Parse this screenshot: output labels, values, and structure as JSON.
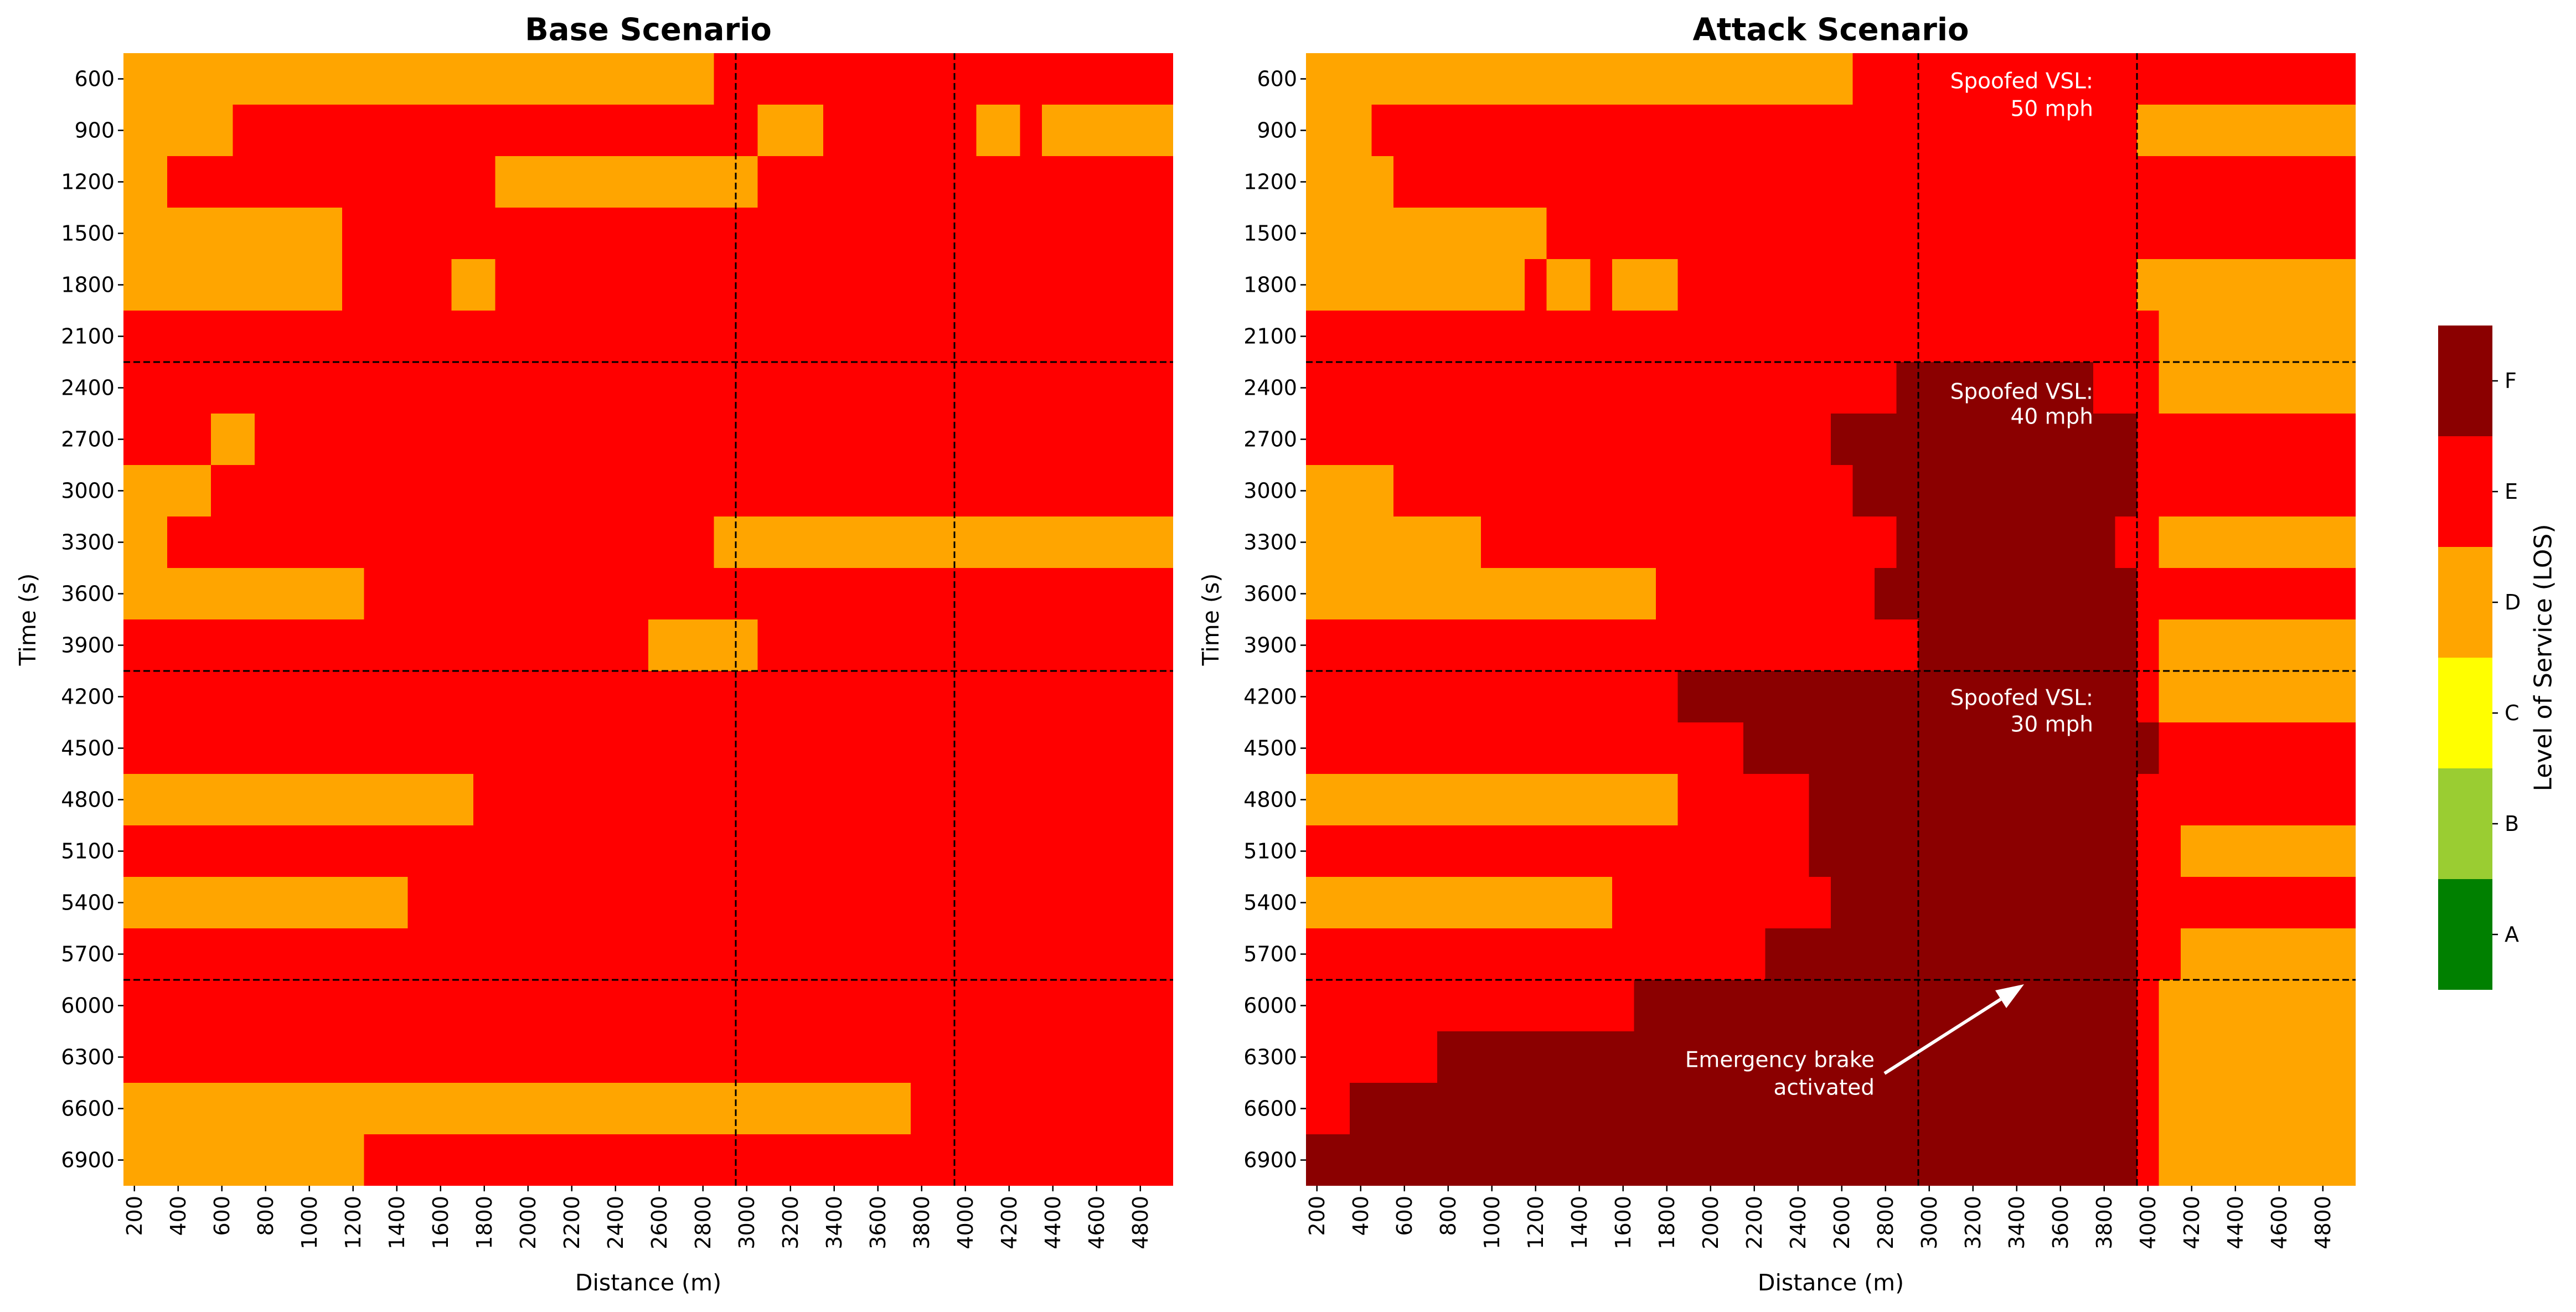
{
  "chart_data": {
    "type": "heatmap",
    "xlabel": "Distance (m)",
    "ylabel": "Time (s)",
    "colorbar_label": "Level of Service (LOS)",
    "levels": [
      "A",
      "B",
      "C",
      "D",
      "E",
      "F"
    ],
    "level_colors": [
      "#008000",
      "#9acd32",
      "#ffff00",
      "#ffa500",
      "#ff0000",
      "#8b0000"
    ],
    "distance_bins_m": [
      200,
      300,
      400,
      500,
      600,
      700,
      800,
      900,
      1000,
      1100,
      1200,
      1300,
      1400,
      1500,
      1600,
      1700,
      1800,
      1900,
      2000,
      2100,
      2200,
      2300,
      2400,
      2500,
      2600,
      2700,
      2800,
      2900,
      3000,
      3100,
      3200,
      3300,
      3400,
      3500,
      3600,
      3700,
      3800,
      3900,
      4000,
      4100,
      4200,
      4300,
      4400,
      4500,
      4600,
      4700,
      4800,
      4900
    ],
    "xtick_labels": [
      "200",
      "400",
      "600",
      "800",
      "1000",
      "1200",
      "1400",
      "1600",
      "1800",
      "2000",
      "2200",
      "2400",
      "2600",
      "2800",
      "3000",
      "3200",
      "3400",
      "3600",
      "3800",
      "4000",
      "4200",
      "4400",
      "4600",
      "4800"
    ],
    "ytick_labels": [
      "600",
      "900",
      "1200",
      "1500",
      "1800",
      "2100",
      "2400",
      "2700",
      "3000",
      "3300",
      "3600",
      "3900",
      "4200",
      "4500",
      "4800",
      "5100",
      "5400",
      "5700",
      "6000",
      "6300",
      "6600",
      "6900"
    ],
    "distance_markers_m": [
      3000,
      4000
    ],
    "time_markers_s": [
      2400,
      4200,
      6000
    ],
    "cell_encoding": "each row lists [from_distance_m, to_distance_m, level_index] runs; level_index indexes levels",
    "panels": [
      {
        "title": "Base Scenario",
        "rows": [
          {
            "time_s": 600,
            "cells": [
              [
                200,
                2800,
                3
              ],
              [
                2900,
                4900,
                4
              ]
            ]
          },
          {
            "time_s": 900,
            "cells": [
              [
                200,
                600,
                3
              ],
              [
                700,
                3000,
                4
              ],
              [
                3100,
                3300,
                3
              ],
              [
                3400,
                4000,
                4
              ],
              [
                4100,
                4200,
                3
              ],
              [
                4300,
                4300,
                4
              ],
              [
                4400,
                4900,
                3
              ]
            ]
          },
          {
            "time_s": 1200,
            "cells": [
              [
                200,
                300,
                3
              ],
              [
                400,
                1800,
                4
              ],
              [
                1900,
                3000,
                3
              ],
              [
                3100,
                4900,
                4
              ]
            ]
          },
          {
            "time_s": 1500,
            "cells": [
              [
                200,
                1100,
                3
              ],
              [
                1200,
                4900,
                4
              ]
            ]
          },
          {
            "time_s": 1800,
            "cells": [
              [
                200,
                1100,
                3
              ],
              [
                1200,
                1600,
                4
              ],
              [
                1700,
                1800,
                3
              ],
              [
                1900,
                4900,
                4
              ]
            ]
          },
          {
            "time_s": 2100,
            "cells": [
              [
                200,
                4900,
                4
              ]
            ]
          },
          {
            "time_s": 2400,
            "cells": [
              [
                200,
                4900,
                4
              ]
            ]
          },
          {
            "time_s": 2700,
            "cells": [
              [
                200,
                500,
                4
              ],
              [
                600,
                700,
                3
              ],
              [
                800,
                4900,
                4
              ]
            ]
          },
          {
            "time_s": 3000,
            "cells": [
              [
                200,
                500,
                3
              ],
              [
                600,
                4900,
                4
              ]
            ]
          },
          {
            "time_s": 3300,
            "cells": [
              [
                200,
                300,
                3
              ],
              [
                400,
                2800,
                4
              ],
              [
                2900,
                4900,
                3
              ]
            ]
          },
          {
            "time_s": 3600,
            "cells": [
              [
                200,
                1200,
                3
              ],
              [
                1300,
                4900,
                4
              ]
            ]
          },
          {
            "time_s": 3900,
            "cells": [
              [
                200,
                2500,
                4
              ],
              [
                2600,
                3000,
                3
              ],
              [
                3100,
                4900,
                4
              ]
            ]
          },
          {
            "time_s": 4200,
            "cells": [
              [
                200,
                4900,
                4
              ]
            ]
          },
          {
            "time_s": 4500,
            "cells": [
              [
                200,
                4900,
                4
              ]
            ]
          },
          {
            "time_s": 4800,
            "cells": [
              [
                200,
                1700,
                3
              ],
              [
                1800,
                4900,
                4
              ]
            ]
          },
          {
            "time_s": 5100,
            "cells": [
              [
                200,
                4900,
                4
              ]
            ]
          },
          {
            "time_s": 5400,
            "cells": [
              [
                200,
                1400,
                3
              ],
              [
                1500,
                4900,
                4
              ]
            ]
          },
          {
            "time_s": 5700,
            "cells": [
              [
                200,
                4900,
                4
              ]
            ]
          },
          {
            "time_s": 6000,
            "cells": [
              [
                200,
                4900,
                4
              ]
            ]
          },
          {
            "time_s": 6300,
            "cells": [
              [
                200,
                4900,
                4
              ]
            ]
          },
          {
            "time_s": 6600,
            "cells": [
              [
                200,
                3700,
                3
              ],
              [
                3800,
                4900,
                4
              ]
            ]
          },
          {
            "time_s": 6900,
            "cells": [
              [
                200,
                1200,
                3
              ],
              [
                1300,
                4900,
                4
              ]
            ]
          }
        ]
      },
      {
        "title": "Attack Scenario",
        "rows": [
          {
            "time_s": 600,
            "cells": [
              [
                200,
                2600,
                3
              ],
              [
                2700,
                4900,
                4
              ]
            ]
          },
          {
            "time_s": 900,
            "cells": [
              [
                200,
                400,
                3
              ],
              [
                500,
                3900,
                4
              ],
              [
                4000,
                4900,
                3
              ]
            ]
          },
          {
            "time_s": 1200,
            "cells": [
              [
                200,
                500,
                3
              ],
              [
                600,
                4900,
                4
              ]
            ]
          },
          {
            "time_s": 1500,
            "cells": [
              [
                200,
                1200,
                3
              ],
              [
                1300,
                4900,
                4
              ]
            ]
          },
          {
            "time_s": 1800,
            "cells": [
              [
                200,
                1100,
                3
              ],
              [
                1200,
                1200,
                4
              ],
              [
                1300,
                1400,
                3
              ],
              [
                1500,
                1500,
                4
              ],
              [
                1600,
                1800,
                3
              ],
              [
                1900,
                3900,
                4
              ],
              [
                4000,
                4900,
                3
              ]
            ]
          },
          {
            "time_s": 2100,
            "cells": [
              [
                200,
                4000,
                4
              ],
              [
                4100,
                4900,
                3
              ]
            ]
          },
          {
            "time_s": 2400,
            "cells": [
              [
                200,
                2800,
                4
              ],
              [
                2900,
                3700,
                5
              ],
              [
                3800,
                4000,
                4
              ],
              [
                4100,
                4900,
                3
              ]
            ]
          },
          {
            "time_s": 2700,
            "cells": [
              [
                200,
                2500,
                4
              ],
              [
                2600,
                3900,
                5
              ],
              [
                4000,
                4900,
                4
              ]
            ]
          },
          {
            "time_s": 3000,
            "cells": [
              [
                200,
                500,
                3
              ],
              [
                600,
                2600,
                4
              ],
              [
                2700,
                3900,
                5
              ],
              [
                4000,
                4900,
                4
              ]
            ]
          },
          {
            "time_s": 3300,
            "cells": [
              [
                200,
                900,
                3
              ],
              [
                1000,
                2800,
                4
              ],
              [
                2900,
                3800,
                5
              ],
              [
                3900,
                4000,
                4
              ],
              [
                4100,
                4900,
                3
              ]
            ]
          },
          {
            "time_s": 3600,
            "cells": [
              [
                200,
                1700,
                3
              ],
              [
                1800,
                2700,
                4
              ],
              [
                2800,
                3900,
                5
              ],
              [
                4000,
                4900,
                4
              ]
            ]
          },
          {
            "time_s": 3900,
            "cells": [
              [
                200,
                2900,
                4
              ],
              [
                3000,
                3900,
                5
              ],
              [
                4000,
                4000,
                4
              ],
              [
                4100,
                4900,
                3
              ]
            ]
          },
          {
            "time_s": 4200,
            "cells": [
              [
                200,
                1800,
                4
              ],
              [
                1900,
                3900,
                5
              ],
              [
                4000,
                4000,
                4
              ],
              [
                4100,
                4900,
                3
              ]
            ]
          },
          {
            "time_s": 4500,
            "cells": [
              [
                200,
                2100,
                4
              ],
              [
                2200,
                4000,
                5
              ],
              [
                4100,
                4900,
                4
              ]
            ]
          },
          {
            "time_s": 4800,
            "cells": [
              [
                200,
                1800,
                3
              ],
              [
                1900,
                2400,
                4
              ],
              [
                2500,
                3900,
                5
              ],
              [
                4000,
                4900,
                4
              ]
            ]
          },
          {
            "time_s": 5100,
            "cells": [
              [
                200,
                2400,
                4
              ],
              [
                2500,
                3900,
                5
              ],
              [
                4000,
                4100,
                4
              ],
              [
                4200,
                4900,
                3
              ]
            ]
          },
          {
            "time_s": 5400,
            "cells": [
              [
                200,
                1500,
                3
              ],
              [
                1600,
                2500,
                4
              ],
              [
                2600,
                3900,
                5
              ],
              [
                4000,
                4900,
                4
              ]
            ]
          },
          {
            "time_s": 5700,
            "cells": [
              [
                200,
                2200,
                4
              ],
              [
                2300,
                3900,
                5
              ],
              [
                4000,
                4100,
                4
              ],
              [
                4200,
                4900,
                3
              ]
            ]
          },
          {
            "time_s": 6000,
            "cells": [
              [
                200,
                1600,
                4
              ],
              [
                1700,
                3900,
                5
              ],
              [
                4000,
                4000,
                4
              ],
              [
                4100,
                4900,
                3
              ]
            ]
          },
          {
            "time_s": 6300,
            "cells": [
              [
                200,
                700,
                4
              ],
              [
                800,
                3900,
                5
              ],
              [
                4000,
                4000,
                4
              ],
              [
                4100,
                4900,
                3
              ]
            ]
          },
          {
            "time_s": 6600,
            "cells": [
              [
                200,
                300,
                4
              ],
              [
                400,
                3900,
                5
              ],
              [
                4000,
                4000,
                4
              ],
              [
                4100,
                4900,
                3
              ]
            ]
          },
          {
            "time_s": 6900,
            "cells": [
              [
                200,
                3900,
                5
              ],
              [
                4000,
                4000,
                4
              ],
              [
                4100,
                4900,
                3
              ]
            ]
          }
        ],
        "annotations": [
          {
            "lines": [
              "Spoofed VSL:",
              "50 mph"
            ]
          },
          {
            "lines": [
              "Spoofed VSL:",
              "40 mph"
            ]
          },
          {
            "lines": [
              "Spoofed VSL:",
              "30 mph"
            ]
          },
          {
            "lines": [
              "Emergency brake",
              "activated"
            ]
          }
        ]
      }
    ]
  }
}
